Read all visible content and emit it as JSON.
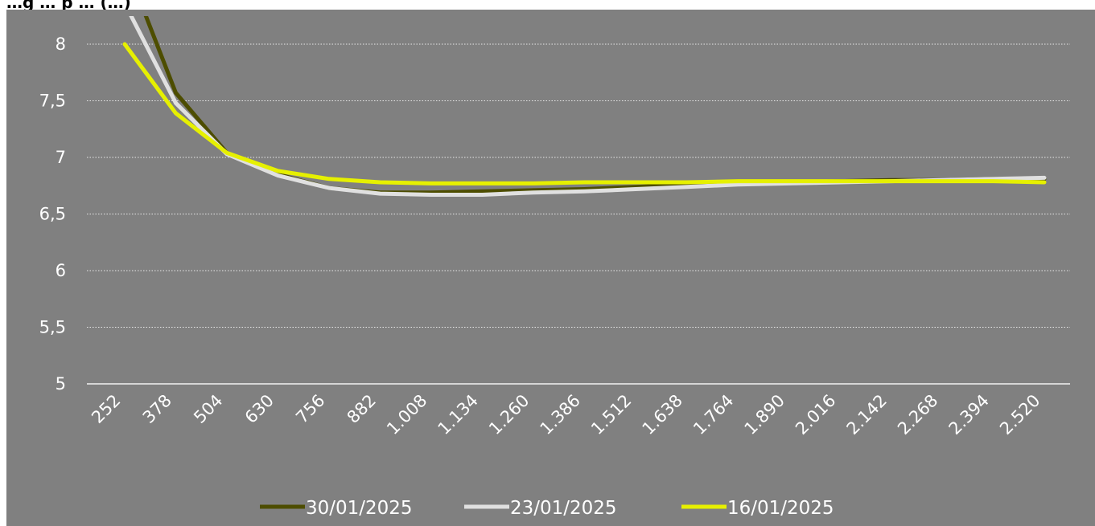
{
  "header": {
    "title": "…g … p … (…)"
  },
  "chart_data": {
    "type": "line",
    "x": [
      252,
      378,
      504,
      630,
      756,
      882,
      1008,
      1134,
      1260,
      1386,
      1512,
      1638,
      1764,
      1890,
      2016,
      2142,
      2268,
      2394,
      2520
    ],
    "x_tick_labels": [
      "252",
      "378",
      "504",
      "630",
      "756",
      "882",
      "1.008",
      "1.134",
      "1.260",
      "1.386",
      "1.512",
      "1.638",
      "1.764",
      "1.890",
      "2.016",
      "2.142",
      "2.268",
      "2.394",
      "2.520"
    ],
    "y_tick_labels": [
      "8",
      "7,5",
      "7",
      "6,5",
      "6",
      "5,5",
      "5"
    ],
    "ylim": [
      5,
      8
    ],
    "grid": true,
    "legend_position": "bottom",
    "series": [
      {
        "name": "30/01/2025",
        "color": "#4d4d00",
        "values": [
          8.73,
          7.57,
          7.04,
          6.85,
          6.73,
          6.69,
          6.69,
          6.7,
          6.71,
          6.72,
          6.74,
          6.76,
          6.77,
          6.78,
          6.79,
          6.8,
          6.8,
          6.81,
          6.81
        ]
      },
      {
        "name": "23/01/2025",
        "color": "#e0e0e0",
        "values": [
          8.36,
          7.48,
          7.03,
          6.84,
          6.73,
          6.68,
          6.67,
          6.67,
          6.69,
          6.7,
          6.72,
          6.74,
          6.76,
          6.77,
          6.78,
          6.79,
          6.8,
          6.81,
          6.82
        ]
      },
      {
        "name": "16/01/2025",
        "color": "#e6f000",
        "values": [
          8.0,
          7.39,
          7.04,
          6.88,
          6.81,
          6.78,
          6.77,
          6.77,
          6.77,
          6.78,
          6.78,
          6.78,
          6.79,
          6.79,
          6.79,
          6.79,
          6.79,
          6.79,
          6.78
        ]
      }
    ]
  }
}
